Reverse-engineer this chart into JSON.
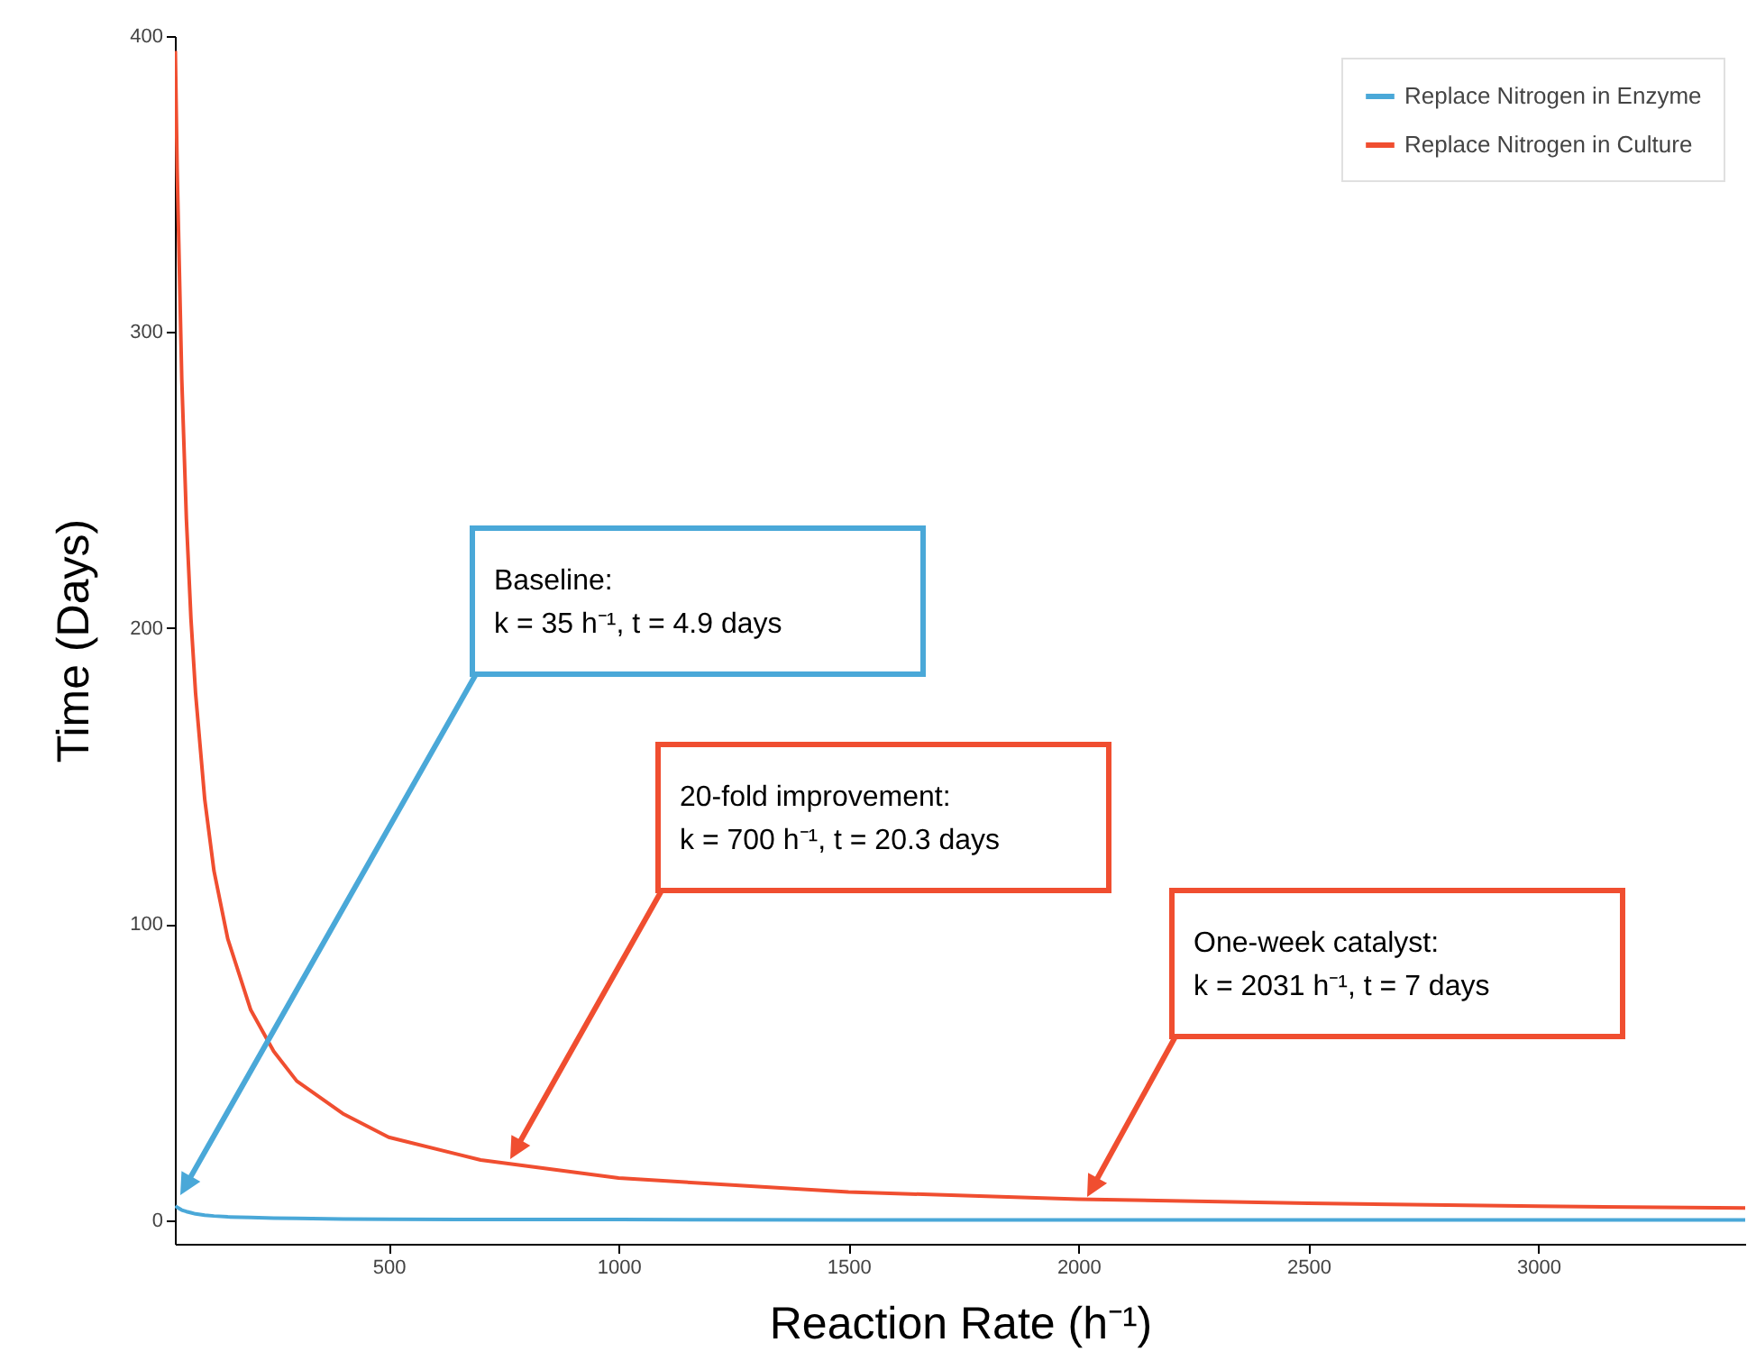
{
  "chart_data": {
    "type": "line",
    "xlabel": "Reaction Rate (h⁻¹)",
    "ylabel": "Time (Days)",
    "x": [
      36,
      40,
      50,
      60,
      70,
      80,
      100,
      120,
      150,
      200,
      250,
      300,
      400,
      500,
      700,
      1000,
      1500,
      2000,
      2500,
      3000,
      3450
    ],
    "series": [
      {
        "name": "Replace Nitrogen in Enzyme",
        "color": "#4aa8d8",
        "values": [
          4.8,
          4.3,
          3.4,
          2.9,
          2.5,
          2.1,
          1.7,
          1.4,
          1.1,
          0.9,
          0.7,
          0.6,
          0.4,
          0.3,
          0.2,
          0.2,
          0.1,
          0.1,
          0.1,
          0.1,
          0.1
        ]
      },
      {
        "name": "Replace Nitrogen in Culture",
        "color": "#f04e30",
        "values": [
          395,
          355,
          284,
          237,
          203,
          178,
          142,
          118,
          95,
          71,
          57,
          47,
          36,
          28,
          20.3,
          14.2,
          9.5,
          7.1,
          5.7,
          4.7,
          4.1
        ]
      }
    ],
    "xlim": [
      35,
      3450
    ],
    "ylim": [
      -8,
      400
    ],
    "xticks": [
      500,
      1000,
      1500,
      2000,
      2500,
      3000
    ],
    "yticks": [
      0,
      100,
      200,
      300,
      400
    ],
    "legend": "top right",
    "grid": false,
    "marker": "none",
    "line_style": "solid",
    "annotations": [
      "Baseline:\nk = 35 h⁻¹, t = 4.9 days",
      "20-fold improvement:\nk = 700 h⁻¹, t = 20.3 days",
      "One-week catalyst:\nk = 2031 h⁻¹, t = 7 days"
    ]
  }
}
